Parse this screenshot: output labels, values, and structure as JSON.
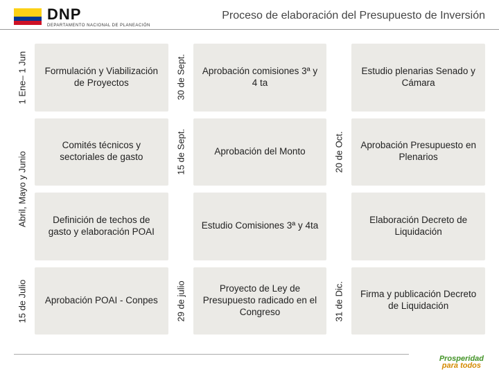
{
  "header": {
    "org_abbr": "DNP",
    "org_full": "DEPARTAMENTO NACIONAL DE PLANEACIÓN",
    "flag_colors": {
      "top": "#fcd116",
      "mid": "#003893",
      "bot": "#ce1126"
    },
    "title": "Proceso de elaboración del Presupuesto de Inversión"
  },
  "grid": {
    "rows": 4,
    "cols": 3,
    "box_bg": "#ebeae6",
    "font_size": 13.5,
    "row_labels": [
      "1 Ene– 1 Jun",
      "Abril, Mayo y Junio",
      null,
      "15 de Julio"
    ],
    "mid_labels_col2": [
      "30  de Sept.",
      "15 de Sept.",
      null,
      "29 de julio"
    ],
    "mid_labels_col3": [
      null,
      "20 de Oct.",
      null,
      "31 de Dic."
    ],
    "cells": [
      [
        "Formulación y Viabilización de Proyectos",
        "Aprobación comisiones 3ª y 4 ta",
        "Estudio plenarias Senado y Cámara"
      ],
      [
        "Comités técnicos y sectoriales de gasto",
        "Aprobación del Monto",
        "Aprobación Presupuesto en Plenarios"
      ],
      [
        "Definición de techos de gasto y elaboración POAI",
        "Estudio Comisiones 3ª y 4ta",
        "Elaboración Decreto de Liquidación"
      ],
      [
        "Aprobación POAI - Conpes",
        "Proyecto de Ley de Presupuesto radicado en el Congreso",
        "Firma y publicación Decreto de Liquidación"
      ]
    ]
  },
  "footer": {
    "line1": "Prosperidad",
    "line2": "para todos"
  }
}
